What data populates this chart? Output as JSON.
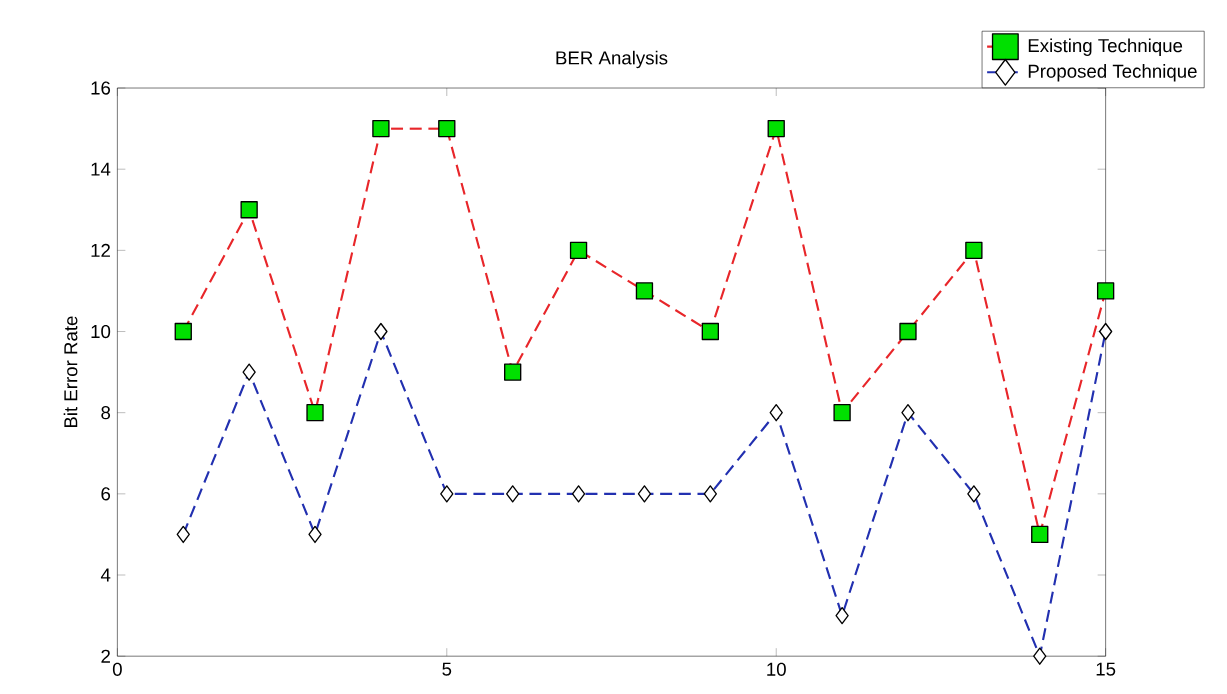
{
  "chart_data": {
    "type": "line",
    "title": "BER Analysis",
    "ylabel": "Bit Error Rate",
    "x": [
      1,
      2,
      3,
      4,
      5,
      6,
      7,
      8,
      9,
      10,
      11,
      12,
      13,
      14,
      15
    ],
    "series": [
      {
        "name": "Existing Technique",
        "color": "#e8262a",
        "marker": "square",
        "values": [
          10,
          13,
          8,
          15,
          15,
          9,
          12,
          11,
          10,
          15,
          8,
          10,
          12,
          5,
          11
        ]
      },
      {
        "name": "Proposed Technique",
        "color": "#2230b0",
        "marker": "diamond",
        "values": [
          5,
          9,
          5,
          10,
          6,
          6,
          6,
          6,
          6,
          8,
          3,
          8,
          6,
          2,
          10
        ]
      }
    ],
    "line_style": "dashed",
    "grid": false,
    "legend": "top right",
    "xlim": [
      0,
      15
    ],
    "xticks": [
      0,
      5,
      10,
      15
    ],
    "ylim": [
      2,
      16
    ],
    "yticks": [
      2,
      4,
      6,
      8,
      10,
      12,
      14,
      16
    ]
  }
}
